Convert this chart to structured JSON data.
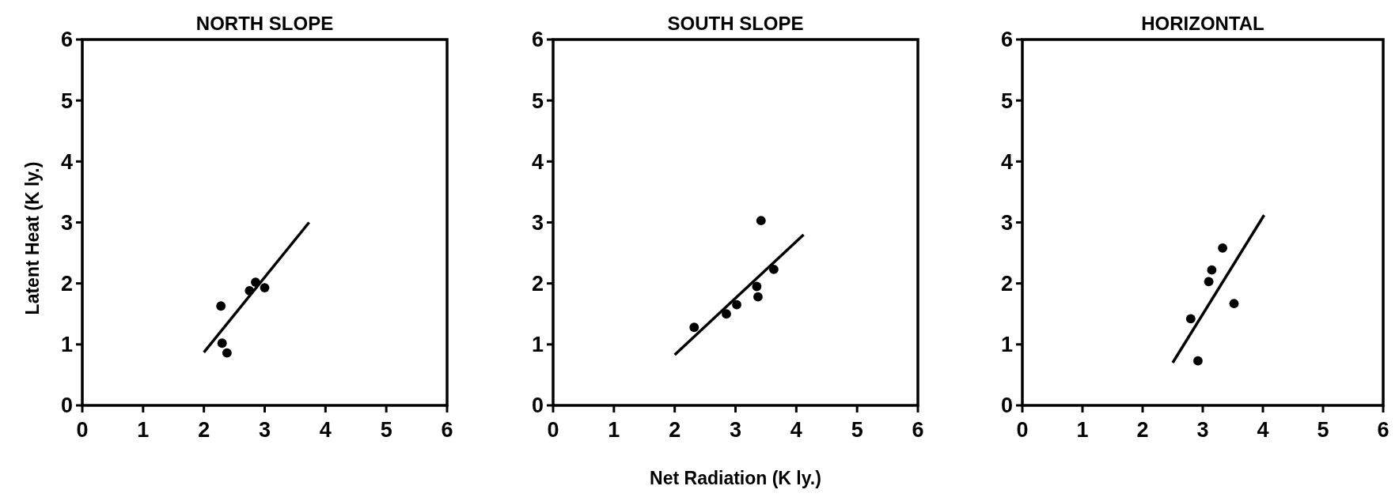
{
  "chart_data": [
    {
      "type": "scatter",
      "title": "NORTH SLOPE",
      "ylabel": "Latent Heat (K ly.)",
      "xlim": [
        0,
        6
      ],
      "ylim": [
        0,
        6
      ],
      "xticks": [
        0,
        1,
        2,
        3,
        4,
        5,
        6
      ],
      "yticks": [
        0,
        1,
        2,
        3,
        4,
        5,
        6
      ],
      "grid": false,
      "series": [
        {
          "color": "#000000",
          "marker": "circle",
          "x": [
            2.28,
            2.3,
            2.38,
            2.75,
            2.85,
            3.0
          ],
          "values": [
            1.63,
            1.02,
            0.86,
            1.88,
            2.02,
            1.93
          ]
        },
        {
          "type": "line",
          "color": "#000000",
          "marker": "none",
          "x": [
            2.0,
            3.73
          ],
          "values": [
            0.87,
            3.0
          ]
        }
      ]
    },
    {
      "type": "scatter",
      "title": "SOUTH SLOPE",
      "xlabel": "Net Radiation (K ly.)",
      "xlim": [
        0,
        6
      ],
      "ylim": [
        0,
        6
      ],
      "xticks": [
        0,
        1,
        2,
        3,
        4,
        5,
        6
      ],
      "yticks": [
        0,
        1,
        2,
        3,
        4,
        5,
        6
      ],
      "grid": false,
      "series": [
        {
          "color": "#000000",
          "marker": "circle",
          "x": [
            2.32,
            2.85,
            3.02,
            3.35,
            3.37,
            3.42,
            3.63
          ],
          "values": [
            1.28,
            1.5,
            1.65,
            1.95,
            1.78,
            3.03,
            2.23
          ]
        },
        {
          "type": "line",
          "color": "#000000",
          "marker": "none",
          "x": [
            2.0,
            4.12
          ],
          "values": [
            0.83,
            2.8
          ]
        }
      ]
    },
    {
      "type": "scatter",
      "title": "HORIZONTAL",
      "xlim": [
        0,
        6
      ],
      "ylim": [
        0,
        6
      ],
      "xticks": [
        0,
        1,
        2,
        3,
        4,
        5,
        6
      ],
      "yticks": [
        0,
        1,
        2,
        3,
        4,
        5,
        6
      ],
      "grid": false,
      "series": [
        {
          "color": "#000000",
          "marker": "circle",
          "x": [
            2.8,
            2.92,
            3.1,
            3.15,
            3.33,
            3.52
          ],
          "values": [
            1.42,
            0.73,
            2.03,
            2.22,
            2.58,
            1.67
          ]
        },
        {
          "type": "line",
          "color": "#000000",
          "marker": "none",
          "x": [
            2.5,
            4.02
          ],
          "values": [
            0.7,
            3.12
          ]
        }
      ]
    }
  ]
}
